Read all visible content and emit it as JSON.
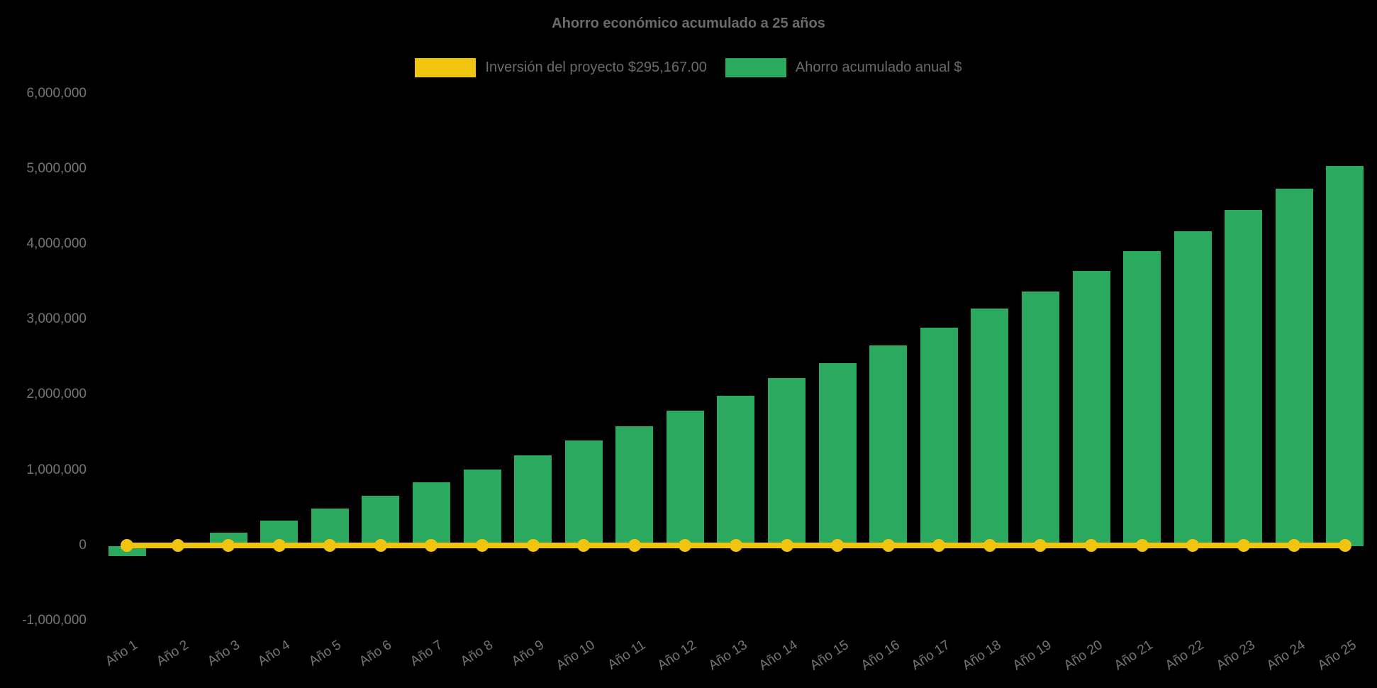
{
  "window": {
    "background": "#000000"
  },
  "title": "Ahorro económico acumulado a 25 años",
  "legend": {
    "items": [
      {
        "label": "Inversión del proyecto $295,167.00",
        "color": "#F1C40F"
      },
      {
        "label": "Ahorro acumulado anual $",
        "color": "#2AA95F"
      }
    ]
  },
  "colors": {
    "background": "#000000",
    "bar_green": "#2AA95F",
    "line_yellow": "#F1C40F",
    "title_text": "#6a6a6a",
    "axis_text": "#757575"
  },
  "chart_data": {
    "type": "bar",
    "title": "Ahorro económico acumulado a 25 años",
    "xlabel": "",
    "ylabel": "",
    "legend_position": "top",
    "grid": false,
    "categories": [
      "Año 1",
      "Año 2",
      "Año 3",
      "Año 4",
      "Año 5",
      "Año 6",
      "Año 7",
      "Año 8",
      "Año 9",
      "Año 10",
      "Año 11",
      "Año 12",
      "Año 13",
      "Año 14",
      "Año 15",
      "Año 16",
      "Año 17",
      "Año 18",
      "Año 19",
      "Año 20",
      "Año 21",
      "Año 22",
      "Año 23",
      "Año 24",
      "Año 25"
    ],
    "series": [
      {
        "name": "Ahorro acumulado anual $",
        "type": "bar",
        "color": "#2AA95F",
        "values": [
          -140000,
          15000,
          165000,
          330000,
          490000,
          660000,
          840000,
          1010000,
          1190000,
          1390000,
          1580000,
          1790000,
          1990000,
          2220000,
          2420000,
          2650000,
          2890000,
          3140000,
          3370000,
          3640000,
          3910000,
          4170000,
          4450000,
          4740000,
          5040000
        ]
      },
      {
        "name": "Inversión del proyecto $295,167.00",
        "type": "line",
        "color": "#F1C40F",
        "investment_value": 295167,
        "plotted_value": 0,
        "values": [
          0,
          0,
          0,
          0,
          0,
          0,
          0,
          0,
          0,
          0,
          0,
          0,
          0,
          0,
          0,
          0,
          0,
          0,
          0,
          0,
          0,
          0,
          0,
          0,
          0
        ]
      }
    ],
    "y_axis": {
      "tick_labels": [
        "6,000,000",
        "5,000,000",
        "4,000,000",
        "3,000,000",
        "2,000,000",
        "1,000,000",
        "0",
        "-1,000,000"
      ],
      "tick_values": [
        6000000,
        5000000,
        4000000,
        3000000,
        2000000,
        1000000,
        0,
        -1000000
      ],
      "range": [
        -1000000,
        6000000
      ]
    }
  }
}
